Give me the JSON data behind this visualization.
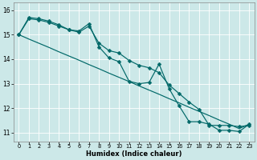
{
  "xlabel": "Humidex (Indice chaleur)",
  "bg_color": "#cce8e8",
  "grid_color": "#ffffff",
  "line_color": "#006868",
  "xlim": [
    -0.5,
    23.5
  ],
  "ylim": [
    10.65,
    16.3
  ],
  "xticks": [
    0,
    1,
    2,
    3,
    4,
    5,
    6,
    7,
    8,
    9,
    10,
    11,
    12,
    13,
    14,
    15,
    16,
    17,
    18,
    19,
    20,
    21,
    22,
    23
  ],
  "yticks": [
    11,
    12,
    13,
    14,
    15,
    16
  ],
  "series_jagged": [
    15.0,
    15.7,
    15.65,
    15.55,
    15.4,
    15.2,
    15.15,
    15.45,
    14.5,
    14.05,
    13.9,
    13.1,
    13.0,
    13.05,
    13.8,
    12.8,
    12.1,
    11.45,
    11.45,
    11.35,
    11.1,
    11.1,
    11.05,
    11.35
  ],
  "series_smooth": [
    15.0,
    15.65,
    15.6,
    15.5,
    15.35,
    15.2,
    15.1,
    15.35,
    14.65,
    14.35,
    14.25,
    13.95,
    13.75,
    13.65,
    13.45,
    12.95,
    12.6,
    12.25,
    11.95,
    11.3,
    11.3,
    11.3,
    11.25,
    11.3
  ],
  "series_linear": [
    15.0,
    14.82,
    14.65,
    14.48,
    14.3,
    14.13,
    13.96,
    13.78,
    13.61,
    13.43,
    13.26,
    13.09,
    12.91,
    12.74,
    12.57,
    12.39,
    12.22,
    12.04,
    11.87,
    11.7,
    11.52,
    11.35,
    11.17,
    11.35
  ]
}
